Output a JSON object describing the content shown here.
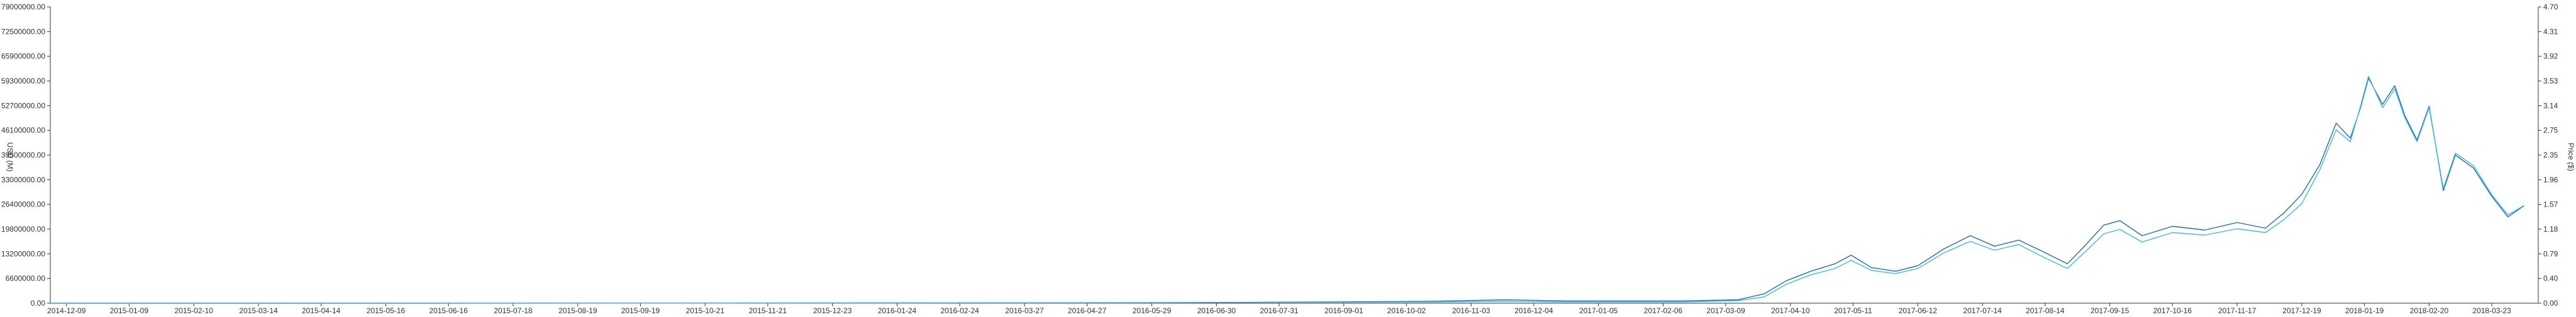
{
  "chart_data": {
    "type": "line",
    "x_type": "date",
    "x_ticks": [
      "2014-12-09",
      "2015-01-09",
      "2015-02-10",
      "2015-03-14",
      "2015-04-14",
      "2015-05-16",
      "2015-06-16",
      "2015-07-18",
      "2015-08-19",
      "2015-09-19",
      "2015-10-21",
      "2015-11-21",
      "2015-12-23",
      "2016-01-24",
      "2016-02-24",
      "2016-03-27",
      "2016-04-27",
      "2016-05-29",
      "2016-06-30",
      "2016-07-31",
      "2016-09-01",
      "2016-10-02",
      "2016-11-03",
      "2016-12-04",
      "2017-01-05",
      "2017-02-06",
      "2017-03-09",
      "2017-04-10",
      "2017-05-11",
      "2017-06-12",
      "2017-07-14",
      "2017-08-14",
      "2017-09-15",
      "2017-10-16",
      "2017-11-17",
      "2017-12-19",
      "2018-01-19",
      "2018-02-20",
      "2018-03-23"
    ],
    "left_axis": {
      "label": "USD (M)",
      "ticks": [
        "0.00",
        "6600000.00",
        "13200000.00",
        "19800000.00",
        "26400000.00",
        "33000000.00",
        "39500000.00",
        "46100000.00",
        "52700000.00",
        "59300000.00",
        "65900000.00",
        "72500000.00",
        "79000000.00"
      ],
      "range": [
        0,
        79000000
      ]
    },
    "right_axis": {
      "label": "Price ($)",
      "ticks": [
        "0.00",
        "0.40",
        "0.79",
        "1.18",
        "1.57",
        "1.96",
        "2.35",
        "2.75",
        "3.14",
        "3.53",
        "3.92",
        "4.31",
        "4.70"
      ],
      "range": [
        0,
        4.7
      ]
    },
    "x_range": [
      "2014-12-01",
      "2018-04-15"
    ],
    "grid": false,
    "colors": {
      "series_a": "#1a6fb5",
      "series_b": "#3fb8e6",
      "axis": "#333333"
    },
    "series": [
      {
        "axis": "left",
        "color": "#1a6fb5",
        "x": [
          "2014-12-01",
          "2015-06-01",
          "2016-06-01",
          "2016-10-15",
          "2016-11-20",
          "2016-12-20",
          "2017-02-15",
          "2017-03-15",
          "2017-03-28",
          "2017-04-08",
          "2017-04-20",
          "2017-05-02",
          "2017-05-10",
          "2017-05-20",
          "2017-06-01",
          "2017-06-12",
          "2017-06-25",
          "2017-07-08",
          "2017-07-20",
          "2017-08-01",
          "2017-08-12",
          "2017-08-25",
          "2017-09-03",
          "2017-09-12",
          "2017-09-20",
          "2017-10-01",
          "2017-10-16",
          "2017-11-01",
          "2017-11-17",
          "2017-12-01",
          "2017-12-10",
          "2017-12-19",
          "2017-12-28",
          "2018-01-05",
          "2018-01-12",
          "2018-01-17",
          "2018-01-21",
          "2018-01-28",
          "2018-02-03",
          "2018-02-08",
          "2018-02-14",
          "2018-02-20",
          "2018-02-27",
          "2018-03-05",
          "2018-03-14",
          "2018-03-23",
          "2018-03-31",
          "2018-04-08"
        ],
        "y": [
          0,
          0,
          100000,
          500000,
          900000,
          600000,
          600000,
          900000,
          2500000,
          6000000,
          8500000,
          10500000,
          12800000,
          9500000,
          8500000,
          10000000,
          14500000,
          18000000,
          15200000,
          16800000,
          14000000,
          10500000,
          15500000,
          20800000,
          22000000,
          18000000,
          20500000,
          19500000,
          21500000,
          20000000,
          24000000,
          29000000,
          37000000,
          48000000,
          44000000,
          52000000,
          60000000,
          53000000,
          58000000,
          50000000,
          43500000,
          52500000,
          30000000,
          39500000,
          36000000,
          28500000,
          23000000,
          26000000
        ]
      },
      {
        "axis": "right",
        "color": "#3fb8e6",
        "x": [
          "2014-12-01",
          "2015-06-01",
          "2016-06-01",
          "2016-10-15",
          "2016-11-20",
          "2016-12-20",
          "2017-02-15",
          "2017-03-15",
          "2017-03-28",
          "2017-04-08",
          "2017-04-20",
          "2017-05-02",
          "2017-05-10",
          "2017-05-20",
          "2017-06-01",
          "2017-06-12",
          "2017-06-25",
          "2017-07-08",
          "2017-07-20",
          "2017-08-01",
          "2017-08-12",
          "2017-08-25",
          "2017-09-03",
          "2017-09-12",
          "2017-09-20",
          "2017-10-01",
          "2017-10-16",
          "2017-11-01",
          "2017-11-17",
          "2017-12-01",
          "2017-12-10",
          "2017-12-19",
          "2017-12-28",
          "2018-01-05",
          "2018-01-12",
          "2018-01-17",
          "2018-01-21",
          "2018-01-28",
          "2018-02-03",
          "2018-02-08",
          "2018-02-14",
          "2018-02-20",
          "2018-02-27",
          "2018-03-05",
          "2018-03-14",
          "2018-03-23",
          "2018-03-31",
          "2018-04-08"
        ],
        "y": [
          0,
          0,
          0.01,
          0.02,
          0.03,
          0.02,
          0.02,
          0.04,
          0.1,
          0.3,
          0.45,
          0.55,
          0.68,
          0.52,
          0.47,
          0.55,
          0.8,
          0.98,
          0.84,
          0.93,
          0.75,
          0.55,
          0.82,
          1.1,
          1.17,
          0.97,
          1.12,
          1.08,
          1.18,
          1.12,
          1.32,
          1.58,
          2.12,
          2.75,
          2.56,
          3.12,
          3.6,
          3.1,
          3.4,
          2.94,
          2.56,
          3.1,
          1.82,
          2.38,
          2.18,
          1.72,
          1.4,
          1.55
        ]
      }
    ]
  }
}
